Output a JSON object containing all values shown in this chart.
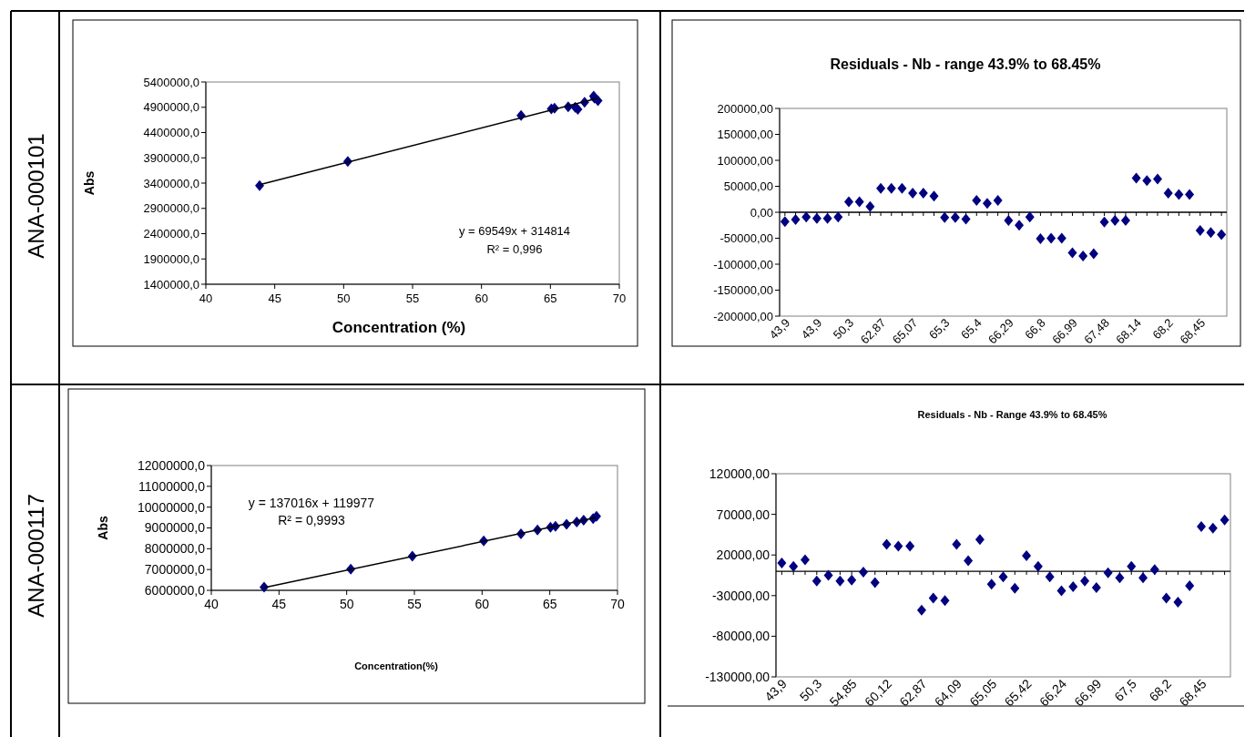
{
  "chart_data": [
    {
      "type": "scatter",
      "xlabel": "Concentration (%)",
      "ylabel": "Abs",
      "marker": "diamond",
      "xlim": [
        40,
        70
      ],
      "xticks": [
        40,
        45,
        50,
        55,
        60,
        65,
        70
      ],
      "ylim": [
        1400000,
        5400000
      ],
      "yticks": [
        {
          "value": 1400000,
          "label": "1400000,0"
        },
        {
          "value": 1900000,
          "label": "1900000,0"
        },
        {
          "value": 2400000,
          "label": "2400000,0"
        },
        {
          "value": 2900000,
          "label": "2900000,0"
        },
        {
          "value": 3400000,
          "label": "3400000,0"
        },
        {
          "value": 3900000,
          "label": "3900000,0"
        },
        {
          "value": 4400000,
          "label": "4400000,0"
        },
        {
          "value": 4900000,
          "label": "4900000,0"
        },
        {
          "value": 5400000,
          "label": "5400000,0"
        }
      ],
      "annotations": [
        "ANA-000101",
        "y = 69549x + 314814",
        "R² = 0,996"
      ],
      "series": [
        {
          "color": "#000080",
          "x": [
            43.9,
            50.3,
            62.87,
            65.07,
            65.3,
            66.29,
            66.8,
            66.99,
            67.48,
            68.14,
            68.2,
            68.45
          ],
          "values": [
            3350000,
            3830000,
            4740000,
            4870000,
            4880000,
            4910000,
            4900000,
            4860000,
            5000000,
            5120000,
            5080000,
            5030000
          ]
        },
        {
          "type": "line",
          "marker": "none",
          "color": "#000000",
          "x": [
            43.9,
            68.45
          ],
          "values": [
            3370000,
            5080000
          ]
        }
      ]
    },
    {
      "type": "scatter",
      "title": "Residuals - Nb - range 43.9% to 68.45%",
      "marker": "diamond",
      "ylim": [
        -200000,
        200000
      ],
      "yticks": [
        {
          "value": -200000,
          "label": "-200000,00"
        },
        {
          "value": -150000,
          "label": "-150000,00"
        },
        {
          "value": -100000,
          "label": "-100000,00"
        },
        {
          "value": -50000,
          "label": "-50000,00"
        },
        {
          "value": 0,
          "label": "0,00"
        },
        {
          "value": 50000,
          "label": "50000,00"
        },
        {
          "value": 100000,
          "label": "100000,00"
        },
        {
          "value": 150000,
          "label": "150000,00"
        },
        {
          "value": 200000,
          "label": "200000,00"
        }
      ],
      "categories": [
        "43,9",
        null,
        null,
        "43,9",
        null,
        null,
        "50,3",
        null,
        null,
        "62,87",
        null,
        null,
        "65,07",
        null,
        null,
        "65,3",
        null,
        null,
        "65,4",
        null,
        null,
        "66,29",
        null,
        null,
        "66,8",
        null,
        null,
        "66,99",
        null,
        null,
        "67,48",
        null,
        null,
        "68,14",
        null,
        null,
        "68,2",
        null,
        null,
        "68,45",
        null,
        null
      ],
      "series": [
        {
          "color": "#000080",
          "values": [
            -18000,
            -14000,
            -9000,
            -12000,
            -12000,
            -9000,
            20000,
            20000,
            11000,
            46000,
            46000,
            46000,
            37000,
            37000,
            31000,
            -10000,
            -10000,
            -13000,
            23000,
            17000,
            23000,
            -16000,
            -25000,
            -9000,
            -51000,
            -50000,
            -50000,
            -78000,
            -84000,
            -80000,
            -19000,
            -16000,
            -16000,
            66000,
            61000,
            64000,
            37000,
            34000,
            34000,
            -35000,
            -39000,
            -43000
          ]
        }
      ]
    },
    {
      "type": "scatter",
      "xlabel": "Concentration(%)",
      "ylabel": "Abs",
      "marker": "diamond",
      "xlim": [
        40,
        70
      ],
      "xticks": [
        40,
        45,
        50,
        55,
        60,
        65,
        70
      ],
      "ylim": [
        6000000,
        12000000
      ],
      "yticks": [
        {
          "value": 6000000,
          "label": "6000000,0"
        },
        {
          "value": 7000000,
          "label": "7000000,0"
        },
        {
          "value": 8000000,
          "label": "8000000,0"
        },
        {
          "value": 9000000,
          "label": "9000000,0"
        },
        {
          "value": 10000000,
          "label": "10000000,0"
        },
        {
          "value": 11000000,
          "label": "11000000,0"
        },
        {
          "value": 12000000,
          "label": "12000000,0"
        }
      ],
      "annotations": [
        "ANA-000117",
        "y = 137016x  + 119977",
        "R² = 0,9993"
      ],
      "series": [
        {
          "color": "#000080",
          "x": [
            43.9,
            50.3,
            54.85,
            60.12,
            62.87,
            64.09,
            65.05,
            65.42,
            66.24,
            66.99,
            67.5,
            68.2,
            68.45
          ],
          "values": [
            6150000,
            7020000,
            7640000,
            8380000,
            8720000,
            8900000,
            9030000,
            9080000,
            9180000,
            9290000,
            9370000,
            9450000,
            9560000
          ]
        },
        {
          "type": "line",
          "marker": "none",
          "color": "#000000",
          "x": [
            43.9,
            68.45
          ],
          "values": [
            6130000,
            9500000
          ]
        }
      ]
    },
    {
      "type": "scatter",
      "title": "Residuals - Nb - Range 43.9% to 68.45%",
      "marker": "diamond",
      "ylim": [
        -130000,
        120000
      ],
      "yticks": [
        {
          "value": -130000,
          "label": "-130000,00"
        },
        {
          "value": -80000,
          "label": "-80000,00"
        },
        {
          "value": -30000,
          "label": "-30000,00"
        },
        {
          "value": 20000,
          "label": "20000,00"
        },
        {
          "value": 70000,
          "label": "70000,00"
        },
        {
          "value": 120000,
          "label": "120000,00"
        }
      ],
      "categories": [
        "43,9",
        null,
        null,
        "50,3",
        null,
        null,
        "54,85",
        null,
        null,
        "60,12",
        null,
        null,
        "62,87",
        null,
        null,
        "64,09",
        null,
        null,
        "65,05",
        null,
        null,
        "65,42",
        null,
        null,
        "66,24",
        null,
        null,
        "66,99",
        null,
        null,
        "67,5",
        null,
        null,
        "68,2",
        null,
        null,
        "68,45",
        null,
        null
      ],
      "series": [
        {
          "color": "#000080",
          "values": [
            10000,
            6000,
            14000,
            -12000,
            -5000,
            -12000,
            -11000,
            -1000,
            -14000,
            33000,
            31000,
            31000,
            -48000,
            -33000,
            -36000,
            33000,
            13000,
            39000,
            -16000,
            -7000,
            -21000,
            19000,
            6000,
            -7000,
            -24000,
            -19000,
            -12000,
            -20000,
            -2000,
            -8000,
            6000,
            -8000,
            2000,
            -33000,
            -38000,
            -18000,
            55000,
            53000,
            63000
          ]
        }
      ]
    }
  ]
}
